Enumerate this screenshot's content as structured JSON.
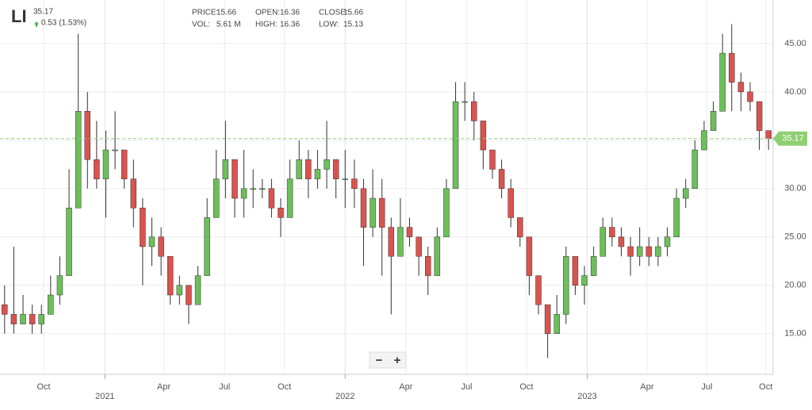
{
  "chart_data": {
    "type": "candlestick",
    "ticker": "LI",
    "last_price": 35.17,
    "change": "0.53 (1.53%)",
    "stats": [
      {
        "label": "PRICE:",
        "value": "15.66"
      },
      {
        "label": "OPEN:",
        "value": "16.36"
      },
      {
        "label": "CLOSE:",
        "value": "15.66"
      },
      {
        "label": "VOL:",
        "value": "5.61 M"
      },
      {
        "label": "HIGH:",
        "value": "16.36"
      },
      {
        "label": "LOW:",
        "value": "15.13"
      }
    ],
    "controls": [
      "−",
      "+"
    ],
    "up_color": "#6cbf5a",
    "down_color": "#d9534f",
    "wick_color": "#333333",
    "price_line_color": "#8fcf72",
    "open": [
      18,
      17,
      16,
      17,
      16,
      17,
      19,
      21,
      28,
      38,
      33,
      31,
      34,
      34,
      31,
      28,
      24,
      25,
      23,
      19,
      20,
      18,
      21,
      27,
      31,
      33,
      29,
      30,
      30,
      30,
      28,
      27,
      31,
      33,
      31,
      32,
      33,
      31,
      31,
      30,
      26,
      29,
      26,
      23,
      26,
      25,
      23,
      21,
      25,
      30,
      39,
      39,
      37,
      34,
      32,
      30,
      27,
      25,
      21,
      18,
      15,
      17,
      23,
      20,
      21,
      23,
      26,
      25,
      24,
      23,
      24,
      23,
      24,
      25,
      29,
      30,
      34,
      36,
      38,
      44,
      41,
      40,
      39,
      36
    ],
    "high": [
      20,
      24,
      19,
      18,
      18,
      21,
      23,
      32,
      46,
      40,
      37,
      36,
      38,
      34,
      33,
      29,
      27,
      26,
      23,
      21,
      20,
      22,
      29,
      34,
      37,
      33,
      34,
      32,
      31,
      31,
      29,
      33,
      35,
      34,
      34,
      37,
      33,
      34,
      33,
      31,
      32,
      31,
      27,
      29,
      27,
      25,
      24,
      26,
      31,
      41,
      41,
      40,
      37,
      34,
      33,
      31,
      27,
      25,
      21,
      18,
      19,
      24,
      23,
      22,
      24,
      27,
      27,
      26,
      25,
      26,
      25,
      25,
      26,
      30,
      31,
      35,
      37,
      39,
      46,
      47,
      42,
      41,
      39,
      36
    ],
    "low": [
      15,
      15,
      16,
      15,
      15,
      17,
      18,
      21,
      28,
      30,
      30,
      27,
      32,
      30,
      26,
      20,
      22,
      21,
      18,
      18,
      16,
      18,
      21,
      27,
      29,
      27,
      27,
      28,
      29,
      27,
      25,
      27,
      31,
      29,
      30,
      30,
      29,
      28,
      28,
      22,
      25,
      21,
      17,
      23,
      24,
      21,
      19,
      21,
      25,
      30,
      37,
      35,
      32,
      31,
      29,
      26,
      24,
      19,
      17,
      12.5,
      15,
      16,
      19,
      18,
      21,
      23,
      24,
      23,
      21,
      22,
      22,
      22,
      23,
      25,
      28,
      30,
      34,
      36,
      38,
      38,
      38,
      38,
      34,
      34
    ],
    "close": [
      17,
      16,
      17,
      16,
      17,
      19,
      21,
      28,
      38,
      33,
      31,
      34,
      34,
      31,
      28,
      24,
      25,
      23,
      19,
      20,
      18,
      21,
      27,
      31,
      33,
      29,
      30,
      30,
      30,
      28,
      27,
      31,
      33,
      31,
      32,
      33,
      31,
      31,
      30,
      26,
      29,
      26,
      23,
      26,
      25,
      23,
      21,
      25,
      30,
      39,
      39,
      37,
      34,
      32,
      30,
      27,
      25,
      21,
      18,
      15,
      17,
      23,
      20,
      21,
      23,
      26,
      25,
      24,
      23,
      24,
      23,
      24,
      25,
      29,
      30,
      34,
      36,
      38,
      44,
      41,
      40,
      39,
      36,
      35.17
    ],
    "xlim": [
      0,
      84
    ],
    "xticks": [
      {
        "value": 4.74,
        "label": "Oct"
      },
      {
        "value": 17.8,
        "label": "Apr"
      },
      {
        "value": 24.4,
        "label": "Jul"
      },
      {
        "value": 30.9,
        "label": "Oct"
      },
      {
        "value": 44.1,
        "label": "Apr"
      },
      {
        "value": 50.7,
        "label": "Jul"
      },
      {
        "value": 57.2,
        "label": "Oct"
      },
      {
        "value": 70.3,
        "label": "Apr"
      },
      {
        "value": 76.8,
        "label": "Jul"
      },
      {
        "value": 83.2,
        "label": "Oct"
      }
    ],
    "year_ticks": [
      {
        "value": 11.4,
        "label": "2021"
      },
      {
        "value": 37.5,
        "label": "2022"
      },
      {
        "value": 63.8,
        "label": "2023"
      }
    ],
    "ylim": [
      10.8,
      49.5
    ],
    "yticks": [
      {
        "value": 15,
        "label": "15.00"
      },
      {
        "value": 20,
        "label": "20.00"
      },
      {
        "value": 25,
        "label": "25.00"
      },
      {
        "value": 30,
        "label": "30.00"
      },
      {
        "value": 35,
        "label": "35.00"
      },
      {
        "value": 40,
        "label": "40.00"
      },
      {
        "value": 45,
        "label": "45.00"
      }
    ],
    "grid": true
  }
}
